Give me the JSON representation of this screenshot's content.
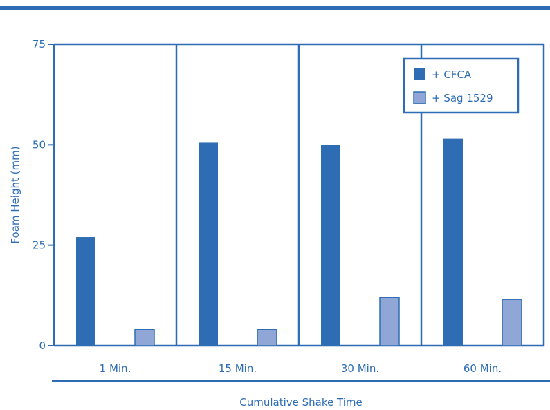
{
  "chart_data": {
    "type": "bar",
    "categories": [
      "1 Min.",
      "15 Min.",
      "30 Min.",
      "60 Min."
    ],
    "series": [
      {
        "name": "+ CFCA",
        "values": [
          27,
          50.5,
          50,
          51.5
        ],
        "color": "#2e6db4"
      },
      {
        "name": "+ Sag 1529",
        "values": [
          4,
          4,
          12,
          11.5
        ],
        "color": "#8fa6d6"
      }
    ],
    "xlabel": "Cumulative Shake Time",
    "ylabel": "Foam Height (mm)",
    "ylim": [
      0,
      75
    ],
    "yticks": [
      0,
      25,
      50,
      75
    ],
    "legend_position": "top-right",
    "grid": false
  },
  "colors": {
    "axis": "#2e6db4",
    "cfca": "#2e6db4",
    "sag": "#8fa6d6",
    "sag_border": "#2e6db4"
  }
}
